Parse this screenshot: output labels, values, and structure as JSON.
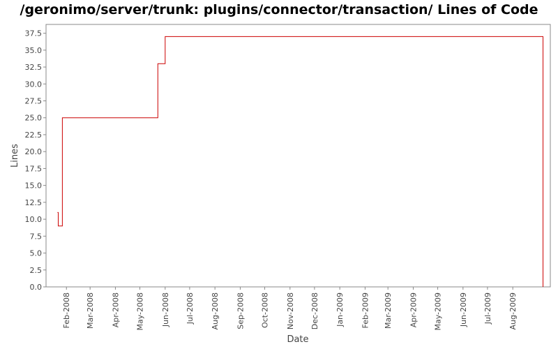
{
  "chart_data": {
    "type": "line",
    "title": "/geronimo/server/trunk: plugins/connector/transaction/ Lines of Code",
    "xlabel": "Date",
    "ylabel": "Lines",
    "ylim": [
      0,
      38.8
    ],
    "xlim": [
      "2008-01-07",
      "2009-09-16"
    ],
    "yticks": [
      "0.0",
      "2.5",
      "5.0",
      "7.5",
      "10.0",
      "12.5",
      "15.0",
      "17.5",
      "20.0",
      "22.5",
      "25.0",
      "27.5",
      "30.0",
      "32.5",
      "35.0",
      "37.5"
    ],
    "xticks": [
      {
        "label": "Feb-2008",
        "date": "2008-02-01"
      },
      {
        "label": "Mar-2008",
        "date": "2008-03-01"
      },
      {
        "label": "Apr-2008",
        "date": "2008-04-01"
      },
      {
        "label": "May-2008",
        "date": "2008-05-01"
      },
      {
        "label": "Jun-2008",
        "date": "2008-06-01"
      },
      {
        "label": "Jul-2008",
        "date": "2008-07-01"
      },
      {
        "label": "Aug-2008",
        "date": "2008-08-01"
      },
      {
        "label": "Sep-2008",
        "date": "2008-09-01"
      },
      {
        "label": "Oct-2008",
        "date": "2008-10-01"
      },
      {
        "label": "Nov-2008",
        "date": "2008-11-01"
      },
      {
        "label": "Dec-2008",
        "date": "2008-12-01"
      },
      {
        "label": "Jan-2009",
        "date": "2009-01-01"
      },
      {
        "label": "Feb-2009",
        "date": "2009-02-01"
      },
      {
        "label": "Mar-2009",
        "date": "2009-03-01"
      },
      {
        "label": "Apr-2009",
        "date": "2009-04-01"
      },
      {
        "label": "May-2009",
        "date": "2009-05-01"
      },
      {
        "label": "Jun-2009",
        "date": "2009-06-01"
      },
      {
        "label": "Jul-2009",
        "date": "2009-07-01"
      },
      {
        "label": "Aug-2009",
        "date": "2009-08-01"
      }
    ],
    "step": true,
    "grid": false,
    "series": [
      {
        "color": "#cc0000",
        "points": [
          {
            "x": "2008-01-21",
            "y": 11
          },
          {
            "x": "2008-01-22",
            "y": 9
          },
          {
            "x": "2008-01-27",
            "y": 25
          },
          {
            "x": "2008-05-23",
            "y": 33
          },
          {
            "x": "2008-06-01",
            "y": 37
          },
          {
            "x": "2009-09-07",
            "y": 0
          }
        ]
      }
    ]
  }
}
